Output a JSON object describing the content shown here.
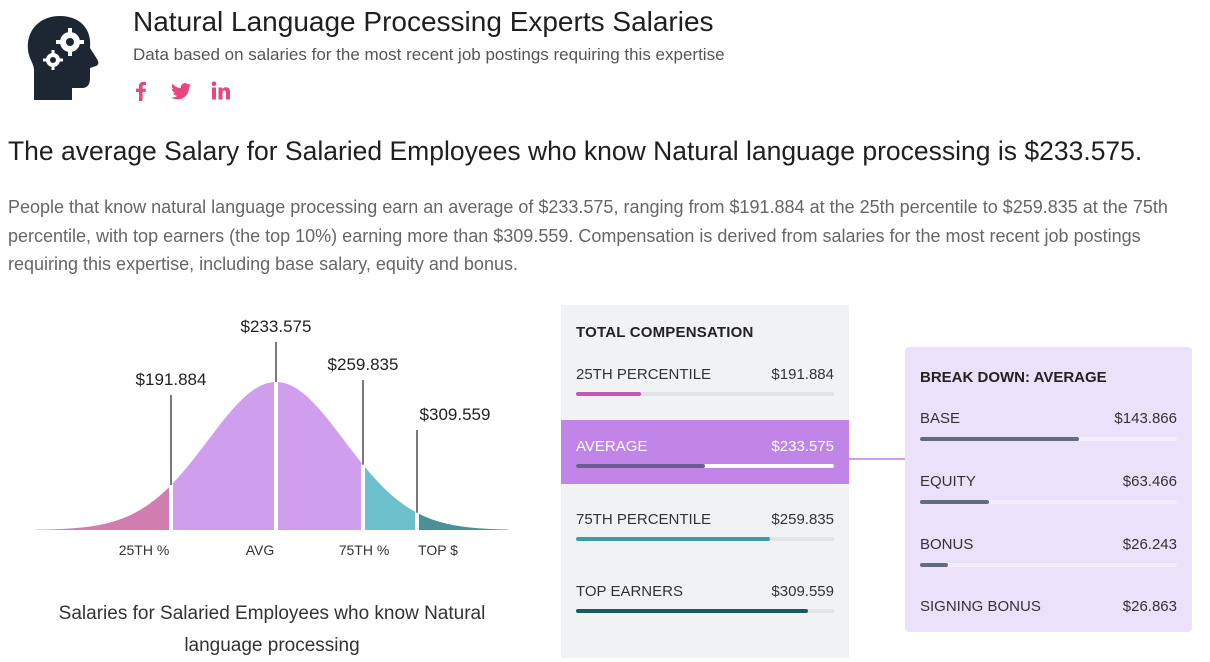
{
  "header": {
    "title": "Natural Language Processing Experts Salaries",
    "subtitle": "Data based on salaries for the most recent job postings requiring this expertise",
    "icon": "brain-gears-icon",
    "social": [
      "facebook-icon",
      "twitter-icon",
      "linkedin-icon"
    ]
  },
  "headline": "The average Salary for Salaried Employees who know Natural language processing is $233.575.",
  "paragraph": "People that know natural language processing earn an average of $233.575, ranging from $191.884 at the 25th percentile to $259.835 at the 75th percentile, with top earners (the top 10%) earning more than $309.559. Compensation is derived from salaries for the most recent job postings requiring this expertise, including base salary, equity and bonus.",
  "chart_data": [
    {
      "type": "area",
      "title": "",
      "markers": [
        {
          "key": "p25",
          "axis_label": "25TH %",
          "value_label": "$191.884",
          "value": 191884,
          "color": "#d17db0"
        },
        {
          "key": "avg",
          "axis_label": "AVG",
          "value_label": "$233.575",
          "value": 233575,
          "color": "#cf9fee"
        },
        {
          "key": "p75",
          "axis_label": "75TH %",
          "value_label": "$259.835",
          "value": 259835,
          "color": "#6bc0c9"
        },
        {
          "key": "top",
          "axis_label": "TOP $",
          "value_label": "$309.559",
          "value": 309559,
          "color": "#4b9097"
        }
      ],
      "caption": "Salaries for Salaried Employees who know Natural language processing"
    },
    {
      "type": "bar",
      "title": "TOTAL COMPENSATION",
      "rows": [
        {
          "label": "25TH PERCENTILE",
          "value_label": "$191.884",
          "value": 191884,
          "fill": 0.25,
          "color": "#c658b2",
          "active": false
        },
        {
          "label": "AVERAGE",
          "value_label": "$233.575",
          "value": 233575,
          "fill": 0.5,
          "color": "#6a5e8e",
          "active": true
        },
        {
          "label": "75TH PERCENTILE",
          "value_label": "$259.835",
          "value": 259835,
          "fill": 0.75,
          "color": "#3a9ea6",
          "active": false
        },
        {
          "label": "TOP EARNERS",
          "value_label": "$309.559",
          "value": 309559,
          "fill": 0.9,
          "color": "#1d5a60",
          "active": false
        }
      ]
    },
    {
      "type": "bar",
      "title": "BREAK DOWN: AVERAGE",
      "rows": [
        {
          "label": "BASE",
          "value_label": "$143.866",
          "value": 143866,
          "fill": 0.62
        },
        {
          "label": "EQUITY",
          "value_label": "$63.466",
          "value": 63466,
          "fill": 0.27
        },
        {
          "label": "BONUS",
          "value_label": "$26.243",
          "value": 26243,
          "fill": 0.11
        },
        {
          "label": "SIGNING BONUS",
          "value_label": "$26.863",
          "value": 26863,
          "fill": 0.0
        }
      ]
    }
  ],
  "colors": {
    "accent_pink": "#e8467c",
    "active_row": "#c085e6",
    "breakdown_bg": "#ebe1fb",
    "panel_bg": "#f1f2f4"
  }
}
